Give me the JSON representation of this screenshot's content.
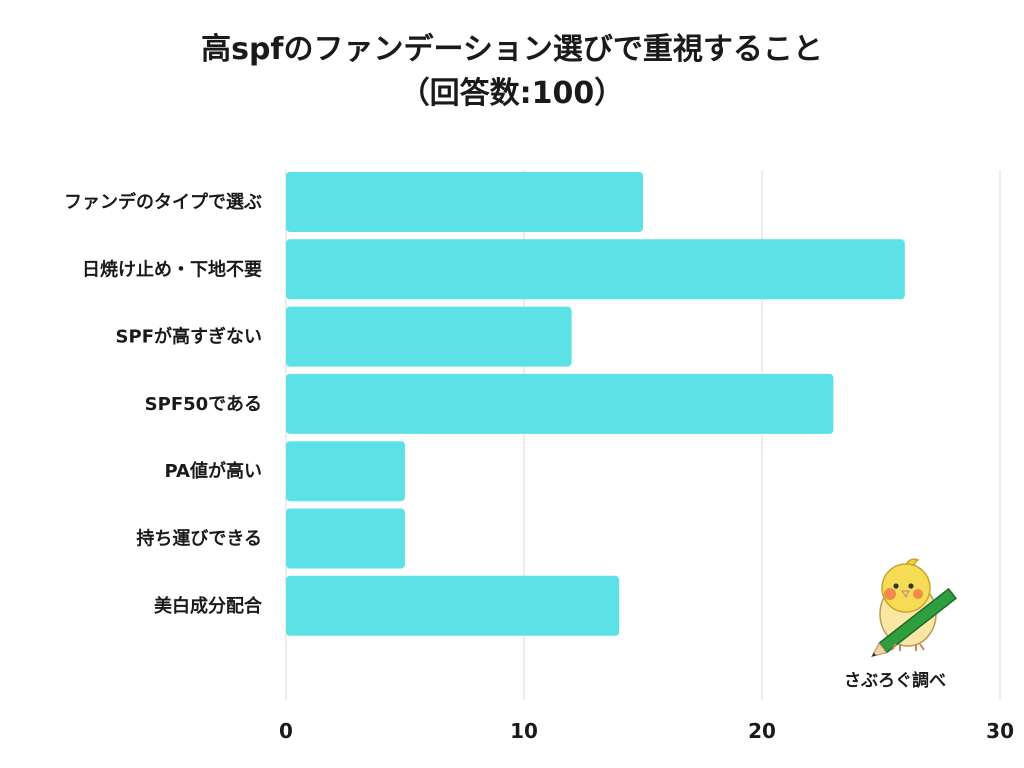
{
  "title_line1": "高spfのファンデーション選びで重視すること",
  "title_line2": "（回答数:100）",
  "brand": {
    "label": "さぶろぐ調べ",
    "icon": "bird-with-pencil-mascot"
  },
  "colors": {
    "bar": "#5ce1e6",
    "grid": "#d9d9d9",
    "text": "#1a1a1a"
  },
  "chart_data": {
    "type": "bar",
    "orientation": "horizontal",
    "categories": [
      "ファンデのタイプで選ぶ",
      "日焼け止め・下地不要",
      "SPFが高すぎない",
      "SPF50である",
      "PA値が高い",
      "持ち運びできる",
      "美白成分配合"
    ],
    "values": [
      15,
      26,
      12,
      23,
      5,
      5,
      14
    ],
    "xlim": [
      0,
      30
    ],
    "xticks": [
      "0",
      "10",
      "20",
      "30"
    ],
    "grid": true,
    "legend": "none"
  }
}
